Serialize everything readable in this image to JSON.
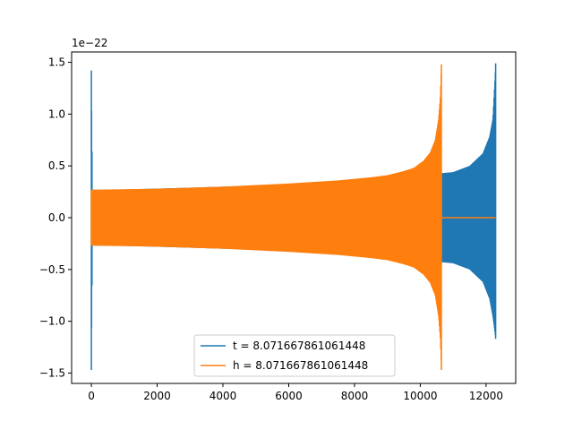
{
  "chart_data": {
    "type": "line",
    "title": "",
    "xlabel": "",
    "ylabel": "",
    "offset_text": "1e−22",
    "xlim": [
      -600,
      12900
    ],
    "ylim": [
      -1.6,
      1.6
    ],
    "x_ticks": [
      0,
      2000,
      4000,
      6000,
      8000,
      10000,
      12000
    ],
    "x_tick_labels": [
      "0",
      "2000",
      "4000",
      "6000",
      "8000",
      "10000",
      "12000"
    ],
    "y_ticks": [
      -1.5,
      -1.0,
      -0.5,
      0.0,
      0.5,
      1.0,
      1.5
    ],
    "y_tick_labels": [
      "−1.5",
      "−1.0",
      "−0.5",
      "0.0",
      "0.5",
      "1.0",
      "1.5"
    ],
    "grid": false,
    "legend_position": "lower center",
    "series": [
      {
        "name": "t = 8.071667861061448",
        "color": "#1f77b4",
        "oscillating": true,
        "envelope_x": [
          0,
          40,
          1000,
          3000,
          5000,
          7000,
          9000,
          10000,
          10650,
          11000,
          11500,
          11900,
          12100,
          12200,
          12290
        ],
        "envelope_upper": [
          1.42,
          0.27,
          0.272,
          0.29,
          0.31,
          0.33,
          0.37,
          0.4,
          0.43,
          0.44,
          0.5,
          0.62,
          0.78,
          0.95,
          1.49
        ],
        "envelope_lower": [
          -1.47,
          -0.27,
          -0.272,
          -0.29,
          -0.31,
          -0.33,
          -0.37,
          -0.4,
          -0.43,
          -0.44,
          -0.5,
          -0.62,
          -0.78,
          -0.95,
          -1.17
        ]
      },
      {
        "name": "h = 8.071667861061448",
        "color": "#ff7f0e",
        "oscillating": true,
        "envelope_x": [
          0,
          50,
          2000,
          4000,
          6000,
          7500,
          8500,
          9000,
          9500,
          9800,
          10100,
          10300,
          10450,
          10550,
          10600,
          10640
        ],
        "envelope_upper": [
          0.27,
          0.27,
          0.28,
          0.3,
          0.33,
          0.36,
          0.39,
          0.41,
          0.45,
          0.48,
          0.55,
          0.63,
          0.75,
          0.95,
          1.15,
          1.48
        ],
        "envelope_lower": [
          -0.27,
          -0.27,
          -0.28,
          -0.3,
          -0.33,
          -0.36,
          -0.39,
          -0.41,
          -0.45,
          -0.48,
          -0.55,
          -0.63,
          -0.75,
          -0.95,
          -1.15,
          -1.47
        ],
        "tail_x": [
          10650,
          12290
        ],
        "tail_y": [
          0.0,
          0.0
        ]
      }
    ]
  }
}
